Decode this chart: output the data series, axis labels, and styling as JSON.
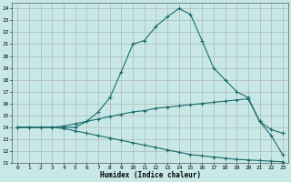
{
  "xlabel": "Humidex (Indice chaleur)",
  "background_color": "#c8e8e8",
  "grid_color": "#b0d0d0",
  "line_color": "#1a6b6b",
  "xlim": [
    -0.5,
    23.5
  ],
  "ylim": [
    11,
    24.5
  ],
  "xticks": [
    0,
    1,
    2,
    3,
    4,
    5,
    6,
    7,
    8,
    9,
    10,
    11,
    12,
    13,
    14,
    15,
    16,
    17,
    18,
    19,
    20,
    21,
    22,
    23
  ],
  "yticks": [
    11,
    12,
    13,
    14,
    15,
    16,
    17,
    18,
    19,
    20,
    21,
    22,
    23,
    24
  ],
  "line1_x": [
    0,
    1,
    2,
    3,
    4,
    5,
    6,
    7,
    8,
    9,
    10,
    11,
    12,
    13,
    14,
    15,
    16,
    17,
    18,
    19,
    20,
    21,
    22,
    23
  ],
  "line1_y": [
    14,
    14,
    14,
    14,
    14,
    14,
    14.5,
    15.3,
    16.5,
    18.7,
    21.0,
    21.3,
    22.5,
    23.3,
    24.0,
    23.5,
    21.3,
    19.0,
    18.0,
    17.0,
    16.5,
    14.5,
    13.3,
    11.7
  ],
  "line2_x": [
    0,
    1,
    2,
    3,
    4,
    5,
    6,
    7,
    8,
    9,
    10,
    11,
    12,
    13,
    14,
    15,
    16,
    17,
    18,
    19,
    20,
    21,
    22,
    23
  ],
  "line2_y": [
    14,
    14,
    14,
    14,
    14.1,
    14.3,
    14.5,
    14.7,
    14.9,
    15.1,
    15.3,
    15.4,
    15.6,
    15.7,
    15.8,
    15.9,
    16.0,
    16.1,
    16.2,
    16.3,
    16.4,
    14.5,
    13.8,
    13.5
  ],
  "line3_x": [
    0,
    1,
    2,
    3,
    4,
    5,
    6,
    7,
    8,
    9,
    10,
    11,
    12,
    13,
    14,
    15,
    16,
    17,
    18,
    19,
    20,
    21,
    22,
    23
  ],
  "line3_y": [
    14,
    14,
    14,
    14,
    13.9,
    13.7,
    13.5,
    13.3,
    13.1,
    12.9,
    12.7,
    12.5,
    12.3,
    12.1,
    11.9,
    11.7,
    11.6,
    11.5,
    11.4,
    11.3,
    11.25,
    11.2,
    11.15,
    11.1
  ]
}
